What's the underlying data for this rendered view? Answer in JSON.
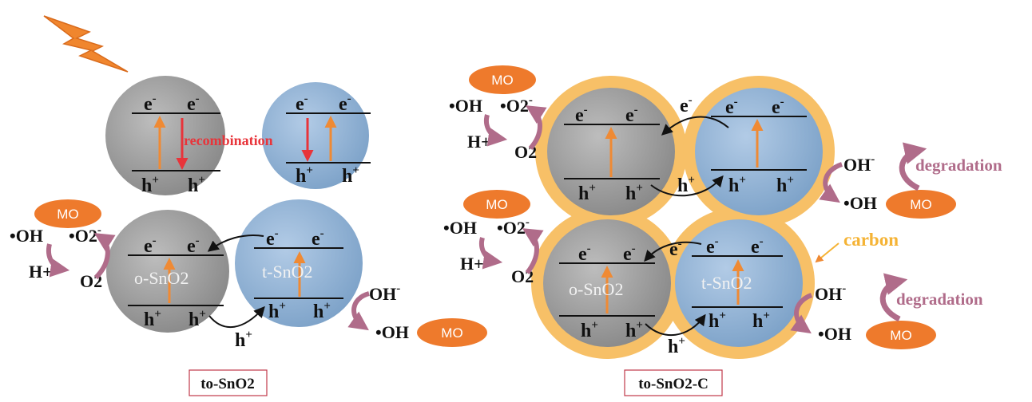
{
  "labels": {
    "electron": "e",
    "hole": "h",
    "minus": "-",
    "plus": "+",
    "recombination": "recombination",
    "o_sno2": "o-SnO2",
    "t_sno2": "t-SnO2",
    "mo": "MO",
    "oh_radical": "•OH",
    "o2_radical": "•O2",
    "h_plus": "H+",
    "o2": "O2",
    "oh_minus": "OH-",
    "degradation": "degradation",
    "carbon": "carbon",
    "panel_left": "to-SnO2",
    "panel_right": "to-SnO2-C"
  },
  "colors": {
    "gray_particle": "#9e9e9e",
    "blue_particle": "#8fb3d6",
    "carbon_shell": "#f7c067",
    "mo_badge": "#ee7a2c",
    "lightning": "#f0862e",
    "recombination": "#e8343a",
    "excitation_arrow": "#ef8a34",
    "degradation_arrow": "#b06c8a"
  }
}
